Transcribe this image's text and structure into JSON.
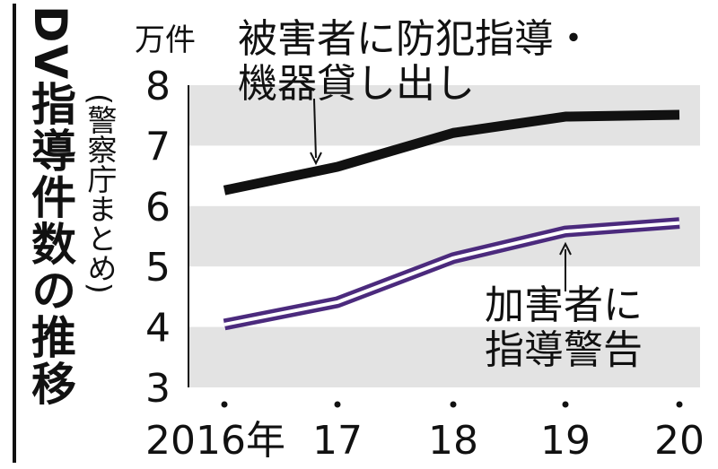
{
  "chart_data": {
    "type": "line",
    "title": "DV指導件数の推移",
    "source": "(警察庁まとめ)",
    "y_unit": "万件",
    "categories": [
      "2016年",
      "17",
      "18",
      "19",
      "20"
    ],
    "series": [
      {
        "name": "被害者に防犯指導・機器貸し出し",
        "color": "#111111",
        "values": [
          6.26,
          6.65,
          7.21,
          7.48,
          7.51
        ]
      },
      {
        "name": "加害者に指導警告",
        "color": "#4b2a7d",
        "values": [
          4.04,
          4.41,
          5.14,
          5.58,
          5.72
        ]
      }
    ],
    "annotations": [
      [
        "被害者に防犯指導・",
        "機器貸し出し"
      ],
      [
        "加害者に",
        "指導警告"
      ]
    ],
    "ylim": [
      3,
      8
    ],
    "yticks": [
      3,
      4,
      5,
      6,
      7,
      8
    ]
  }
}
